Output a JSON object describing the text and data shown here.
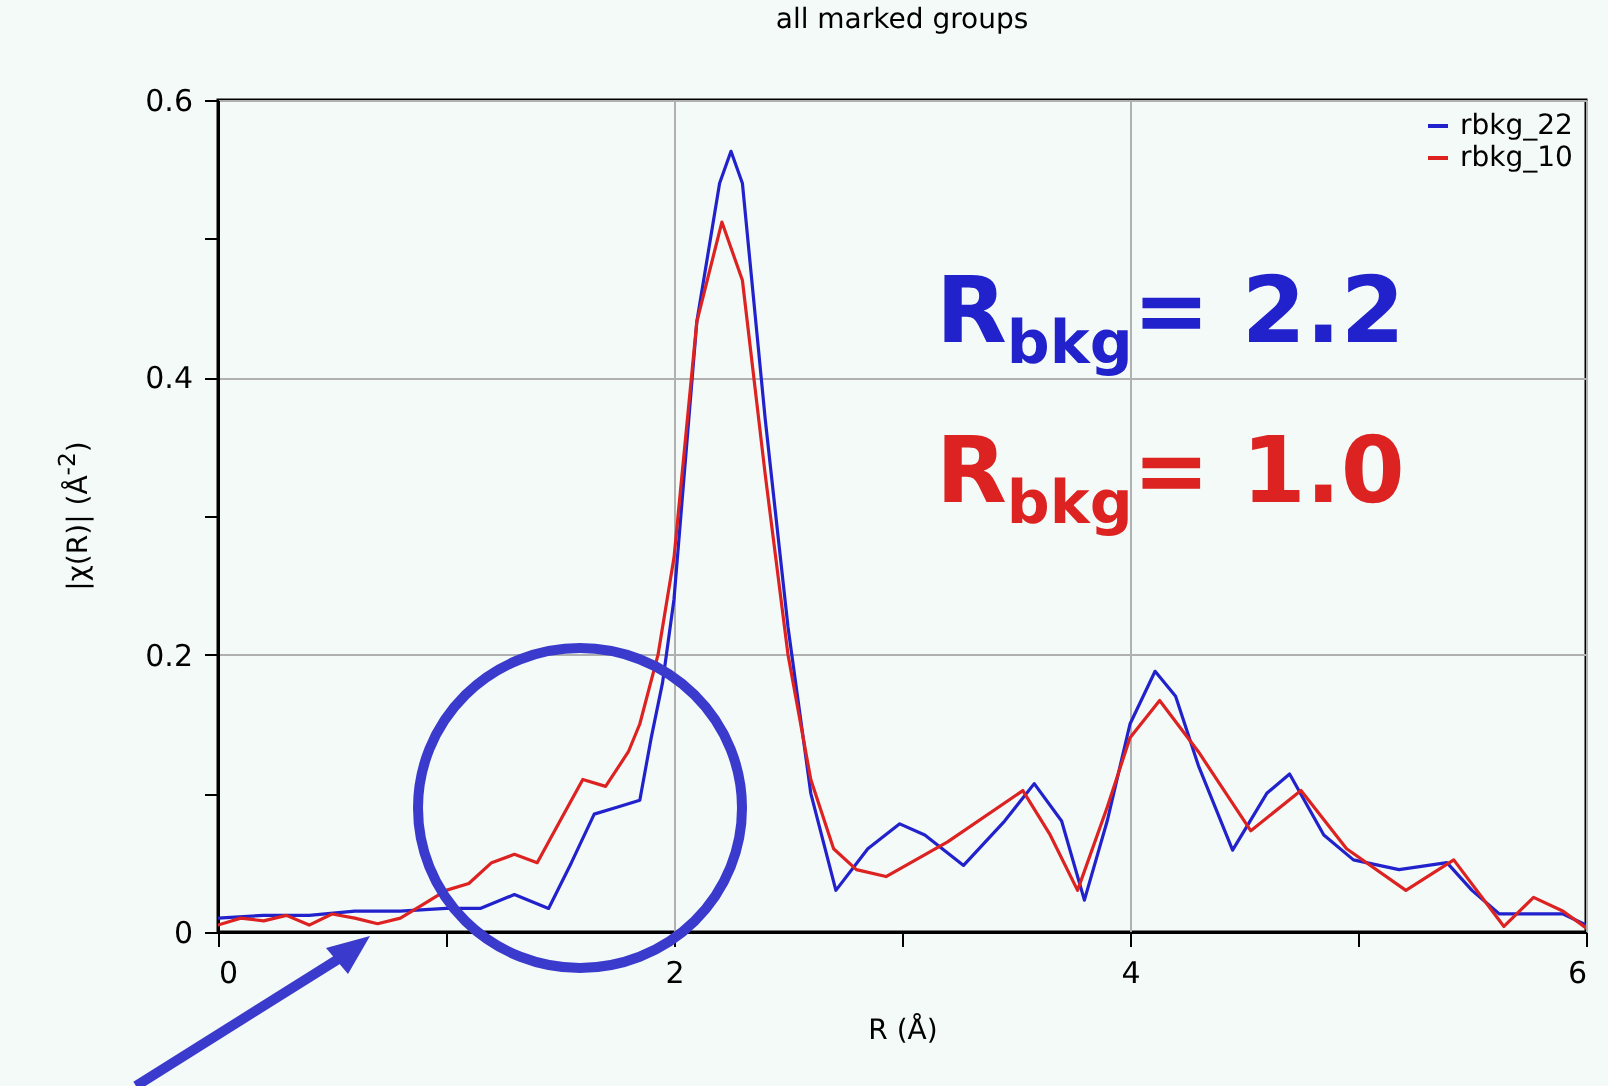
{
  "chart_data": {
    "type": "line",
    "title": "all marked groups",
    "xlabel": "R (Å)",
    "ylabel": "|χ(R)| (Å$^{-2}$)",
    "xlim": [
      0,
      6
    ],
    "xticks": [
      0,
      {
        "value": 1,
        "label": null
      },
      2,
      {
        "value": 3,
        "label": null
      },
      4,
      {
        "value": 5,
        "label": null
      },
      6
    ],
    "ylim": [
      0,
      0.6
    ],
    "yticks": [
      0,
      {
        "value": 0.1,
        "label": null
      },
      0.2,
      {
        "value": 0.3,
        "label": null
      },
      0.4,
      {
        "value": 0.5,
        "label": null
      },
      0.6
    ],
    "grid": true,
    "legend": "top right",
    "annotations": [
      "R$_{bkg}$= 2.2",
      "R$_{bkg}$= 1.0"
    ],
    "series": [
      {
        "name": "rbkg_22",
        "color": "#2222cc",
        "x": [
          0,
          0.2,
          0.4,
          0.6,
          0.8,
          1.0,
          1.15,
          1.3,
          1.45,
          1.55,
          1.65,
          1.75,
          1.85,
          1.9,
          1.95,
          2.0,
          2.1,
          2.2,
          2.25,
          2.3,
          2.4,
          2.5,
          2.6,
          2.71,
          2.85,
          2.99,
          3.1,
          3.27,
          3.45,
          3.58,
          3.7,
          3.8,
          3.9,
          4.0,
          4.11,
          4.2,
          4.3,
          4.45,
          4.6,
          4.7,
          4.85,
          4.98,
          5.18,
          5.39,
          5.5,
          5.62,
          5.9,
          6.0
        ],
        "values": [
          0.01,
          0.012,
          0.012,
          0.015,
          0.015,
          0.017,
          0.017,
          0.027,
          0.017,
          0.05,
          0.085,
          0.09,
          0.095,
          0.14,
          0.18,
          0.24,
          0.44,
          0.54,
          0.563,
          0.54,
          0.37,
          0.22,
          0.1,
          0.03,
          0.06,
          0.078,
          0.07,
          0.048,
          0.08,
          0.107,
          0.08,
          0.023,
          0.08,
          0.15,
          0.188,
          0.17,
          0.12,
          0.059,
          0.1,
          0.114,
          0.07,
          0.052,
          0.045,
          0.05,
          0.03,
          0.013,
          0.013,
          0.005
        ]
      },
      {
        "name": "rbkg_10",
        "color": "#dd2222",
        "x": [
          0,
          0.1,
          0.2,
          0.3,
          0.4,
          0.5,
          0.6,
          0.7,
          0.8,
          0.9,
          1.0,
          1.1,
          1.2,
          1.3,
          1.4,
          1.5,
          1.6,
          1.7,
          1.8,
          1.85,
          1.93,
          2.0,
          2.1,
          2.21,
          2.3,
          2.4,
          2.5,
          2.6,
          2.7,
          2.8,
          2.93,
          3.2,
          3.53,
          3.65,
          3.77,
          3.9,
          4.0,
          4.13,
          4.3,
          4.53,
          4.75,
          4.95,
          5.21,
          5.42,
          5.64,
          5.77,
          5.9,
          6.0
        ],
        "values": [
          0.005,
          0.01,
          0.008,
          0.012,
          0.005,
          0.013,
          0.01,
          0.006,
          0.01,
          0.02,
          0.03,
          0.035,
          0.05,
          0.056,
          0.05,
          0.08,
          0.11,
          0.105,
          0.13,
          0.15,
          0.2,
          0.27,
          0.44,
          0.512,
          0.47,
          0.33,
          0.2,
          0.11,
          0.06,
          0.045,
          0.04,
          0.065,
          0.102,
          0.07,
          0.03,
          0.09,
          0.14,
          0.167,
          0.13,
          0.073,
          0.102,
          0.06,
          0.03,
          0.052,
          0.004,
          0.025,
          0.015,
          0.003
        ]
      }
    ]
  }
}
